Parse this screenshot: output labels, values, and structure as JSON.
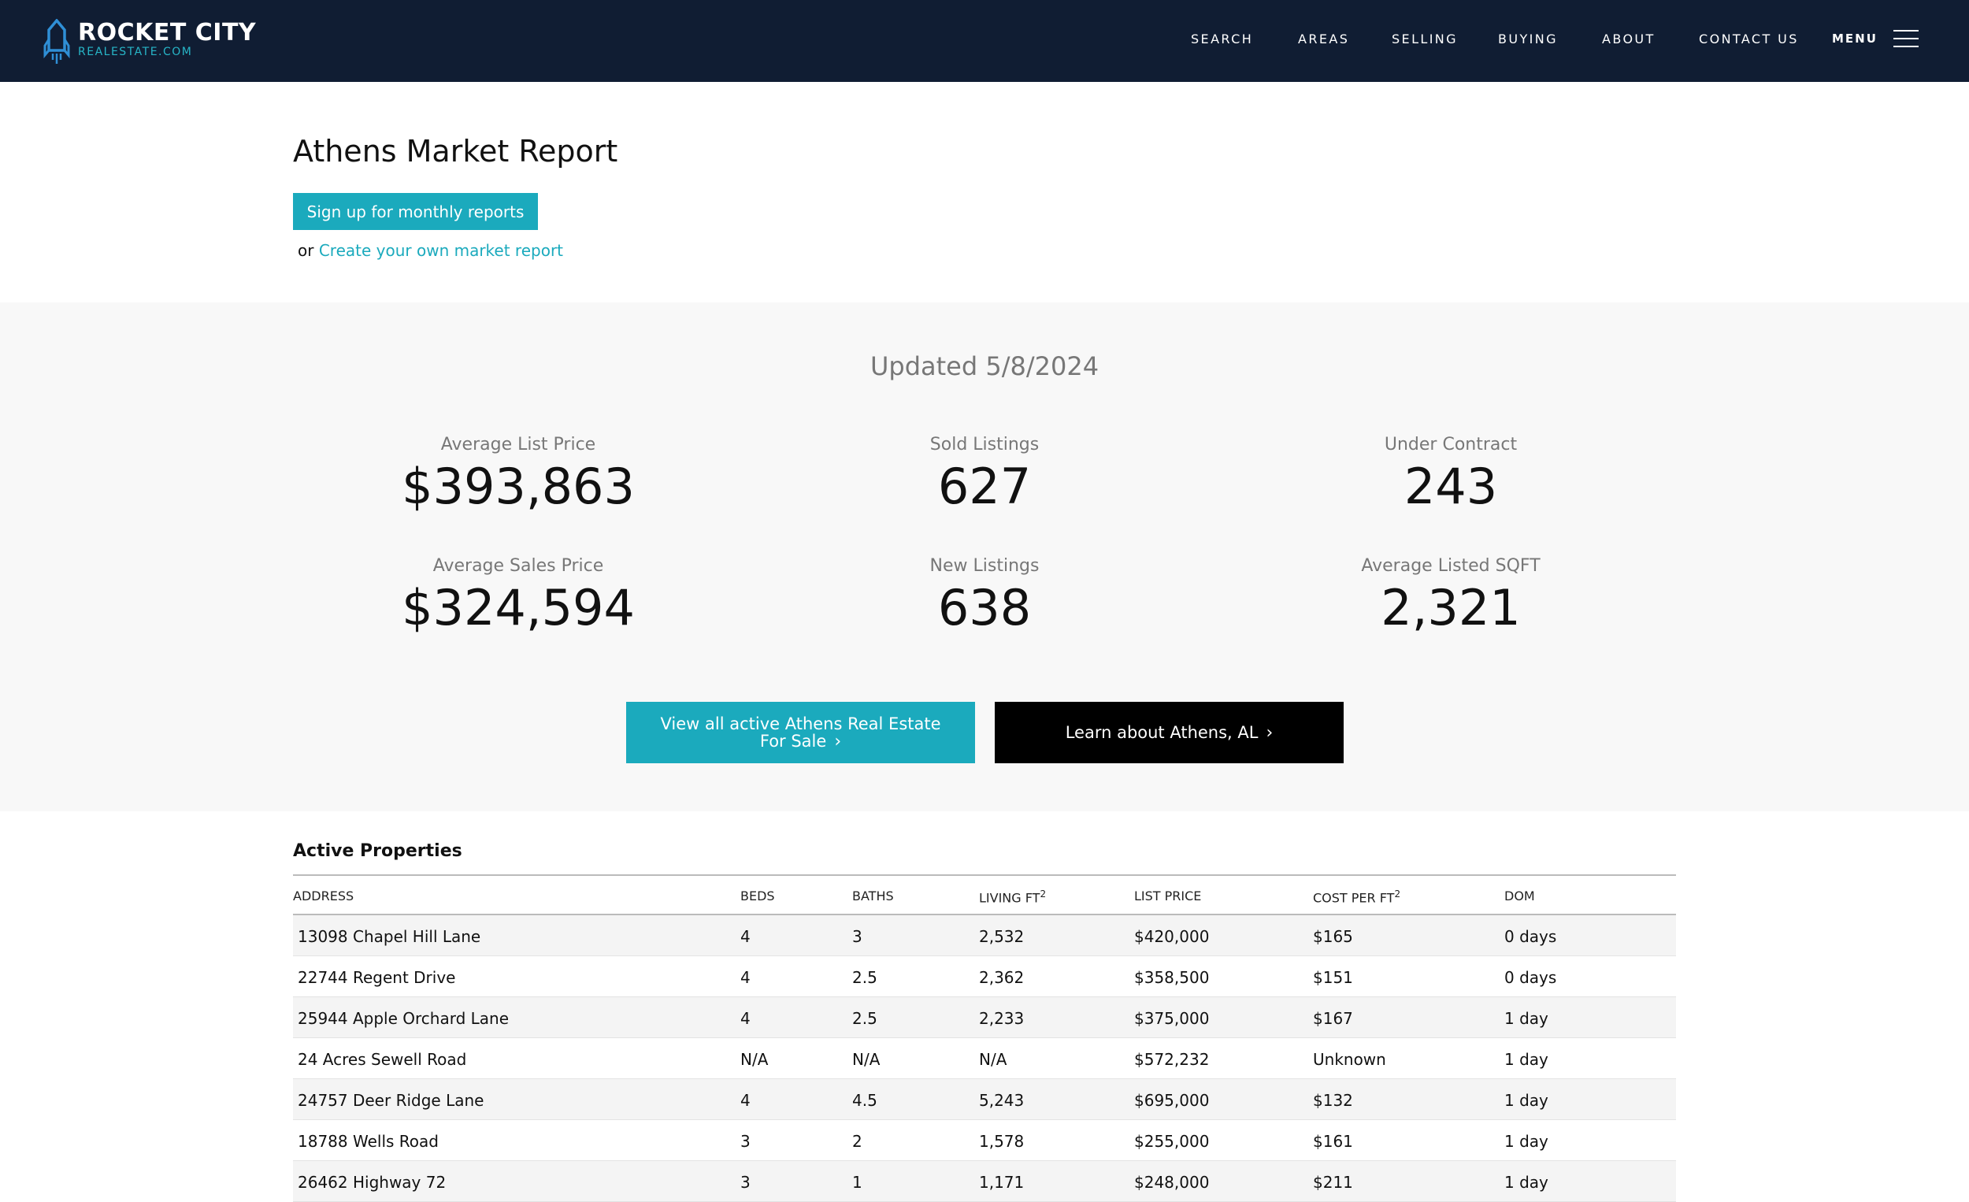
{
  "header": {
    "logo_main": "ROCKET CITY",
    "logo_sub": "REALESTATE.COM",
    "nav": [
      "SEARCH",
      "AREAS",
      "SELLING",
      "BUYING",
      "ABOUT",
      "CONTACT US"
    ],
    "menu_label": "MENU"
  },
  "intro": {
    "title": "Athens Market Report",
    "signup_label": "Sign up for monthly reports",
    "or_text": "or",
    "create_link": "Create your own market report"
  },
  "stats": {
    "updated": "Updated 5/8/2024",
    "items": [
      {
        "label": "Average List Price",
        "value": "$393,863"
      },
      {
        "label": "Sold Listings",
        "value": "627"
      },
      {
        "label": "Under Contract",
        "value": "243"
      },
      {
        "label": "Average Sales Price",
        "value": "$324,594"
      },
      {
        "label": "New Listings",
        "value": "638"
      },
      {
        "label": "Average Listed SQFT",
        "value": "2,321"
      }
    ],
    "view_all_line1": "View all active Athens Real Estate",
    "view_all_line2": "For Sale",
    "learn_label": "Learn about Athens, AL"
  },
  "table": {
    "title": "Active Properties",
    "headers": {
      "address": "ADDRESS",
      "beds": "BEDS",
      "baths": "BATHS",
      "living": "LIVING FT",
      "living_sup": "2",
      "list_price": "LIST PRICE",
      "cost": "COST PER FT",
      "cost_sup": "2",
      "dom": "DOM"
    },
    "rows": [
      {
        "address": "13098 Chapel Hill Lane",
        "beds": "4",
        "baths": "3",
        "living": "2,532",
        "price": "$420,000",
        "cost": "$165",
        "dom": "0 days"
      },
      {
        "address": "22744 Regent Drive",
        "beds": "4",
        "baths": "2.5",
        "living": "2,362",
        "price": "$358,500",
        "cost": "$151",
        "dom": "0 days"
      },
      {
        "address": "25944 Apple Orchard Lane",
        "beds": "4",
        "baths": "2.5",
        "living": "2,233",
        "price": "$375,000",
        "cost": "$167",
        "dom": "1 day"
      },
      {
        "address": "24 Acres Sewell Road",
        "beds": "N/A",
        "baths": "N/A",
        "living": "N/A",
        "price": "$572,232",
        "cost": "Unknown",
        "dom": "1 day"
      },
      {
        "address": "24757 Deer Ridge Lane",
        "beds": "4",
        "baths": "4.5",
        "living": "5,243",
        "price": "$695,000",
        "cost": "$132",
        "dom": "1 day"
      },
      {
        "address": "18788 Wells Road",
        "beds": "3",
        "baths": "2",
        "living": "1,578",
        "price": "$255,000",
        "cost": "$161",
        "dom": "1 day"
      },
      {
        "address": "26462 Highway 72",
        "beds": "3",
        "baths": "1",
        "living": "1,171",
        "price": "$248,000",
        "cost": "$211",
        "dom": "1 day"
      }
    ]
  }
}
